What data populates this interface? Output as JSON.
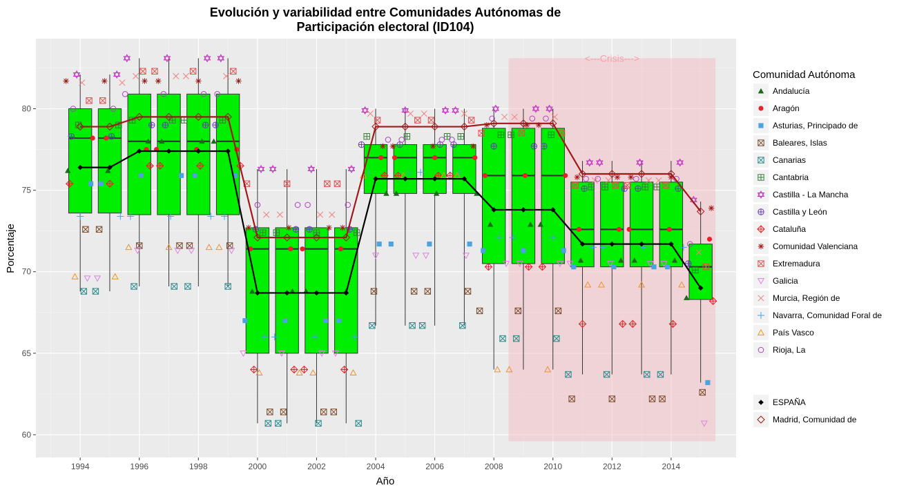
{
  "chart_data": {
    "type": "boxplot",
    "title_line1": "Evolución y variabilidad entre Comunidades Autónomas de",
    "title_line2": "Participación electoral (ID104)",
    "xlabel": "Año",
    "ylabel": "Porcentaje",
    "xlim": [
      1992.5,
      2016.2
    ],
    "ylim": [
      58.6,
      84.3
    ],
    "x_ticks": [
      1994,
      1996,
      1998,
      2000,
      2002,
      2004,
      2006,
      2008,
      2010,
      2012,
      2014
    ],
    "y_ticks": [
      60,
      65,
      70,
      75,
      80
    ],
    "grid": true,
    "crisis": {
      "label": "<---Crisis--->",
      "x_start": 2008.5,
      "x_end": 2015.5,
      "y_min": 59.6,
      "y_max": 83.1
    },
    "legend": {
      "title": "Comunidad Autónoma",
      "position": "right",
      "entries": [
        {
          "label": "Andalucía",
          "shape": "triangle-filled",
          "color": "#1a6b1a"
        },
        {
          "label": "Aragón",
          "shape": "circle-filled",
          "color": "#e8212a"
        },
        {
          "label": "Asturias, Principado de",
          "shape": "square-filled",
          "color": "#4ba3e0"
        },
        {
          "label": "Baleares, Islas",
          "shape": "square-x",
          "color": "#7a4a2a"
        },
        {
          "label": "Canarias",
          "shape": "square-x",
          "color": "#2a8a8a"
        },
        {
          "label": "Cantabria",
          "shape": "square-plus",
          "color": "#3a7a3a"
        },
        {
          "label": "Castilla - La Mancha",
          "shape": "star-david",
          "color": "#c030c0"
        },
        {
          "label": "Castilla y León",
          "shape": "circle-plus",
          "color": "#6a3ac0"
        },
        {
          "label": "Cataluña",
          "shape": "diamond-plus",
          "color": "#e8212a"
        },
        {
          "label": "Comunidad Valenciana",
          "shape": "asterisk",
          "color": "#a01818"
        },
        {
          "label": "Extremadura",
          "shape": "square-x",
          "color": "#e05050"
        },
        {
          "label": "Galicia",
          "shape": "triangle-down",
          "color": "#e080e0"
        },
        {
          "label": "Murcia, Región de",
          "shape": "x",
          "color": "#f08080"
        },
        {
          "label": "Navarra, Comunidad Foral de",
          "shape": "plus",
          "color": "#4ba3e0"
        },
        {
          "label": "País Vasco",
          "shape": "triangle-open",
          "color": "#f0902a"
        },
        {
          "label": "Rioja, La",
          "shape": "circle-open",
          "color": "#b040c0"
        }
      ],
      "entries2": [
        {
          "label": "ESPAÑA",
          "shape": "diamond-filled",
          "color": "#000000"
        },
        {
          "label": "Madrid, Comunidad de",
          "shape": "diamond-open",
          "color": "#a01818"
        }
      ]
    },
    "boxes": [
      {
        "x": 1994,
        "q1": 73.6,
        "median": 78.2,
        "q3": 80.0,
        "whisker_low": 68.8,
        "whisker_high": 82.1
      },
      {
        "x": 1995,
        "q1": 73.6,
        "median": 78.2,
        "q3": 80.0,
        "whisker_low": 68.8,
        "whisker_high": 82.1
      },
      {
        "x": 1996,
        "q1": 73.5,
        "median": 78.0,
        "q3": 80.9,
        "whisker_low": 69.1,
        "whisker_high": 83.1
      },
      {
        "x": 1997,
        "q1": 73.5,
        "median": 78.0,
        "q3": 80.9,
        "whisker_low": 69.1,
        "whisker_high": 83.1
      },
      {
        "x": 1998,
        "q1": 73.5,
        "median": 78.0,
        "q3": 80.9,
        "whisker_low": 69.1,
        "whisker_high": 83.1
      },
      {
        "x": 1999,
        "q1": 73.5,
        "median": 78.0,
        "q3": 80.9,
        "whisker_low": 69.1,
        "whisker_high": 83.1
      },
      {
        "x": 2000,
        "q1": 65.0,
        "median": 71.4,
        "q3": 72.7,
        "whisker_low": 60.7,
        "whisker_high": 76.3
      },
      {
        "x": 2001,
        "q1": 65.0,
        "median": 71.4,
        "q3": 72.7,
        "whisker_low": 60.7,
        "whisker_high": 76.3
      },
      {
        "x": 2002,
        "q1": 65.0,
        "median": 71.4,
        "q3": 72.7,
        "whisker_low": 60.7,
        "whisker_high": 76.3
      },
      {
        "x": 2003,
        "q1": 65.0,
        "median": 71.4,
        "q3": 72.7,
        "whisker_low": 60.7,
        "whisker_high": 76.3
      },
      {
        "x": 2004,
        "q1": 74.8,
        "median": 77.0,
        "q3": 77.8,
        "whisker_low": 66.7,
        "whisker_high": 80.0
      },
      {
        "x": 2005,
        "q1": 74.8,
        "median": 77.0,
        "q3": 77.8,
        "whisker_low": 66.7,
        "whisker_high": 80.0
      },
      {
        "x": 2006,
        "q1": 74.8,
        "median": 77.0,
        "q3": 77.8,
        "whisker_low": 66.7,
        "whisker_high": 80.0
      },
      {
        "x": 2007,
        "q1": 74.8,
        "median": 77.0,
        "q3": 77.8,
        "whisker_low": 66.7,
        "whisker_high": 80.0
      },
      {
        "x": 2008,
        "q1": 70.5,
        "median": 75.9,
        "q3": 78.8,
        "whisker_low": 64.0,
        "whisker_high": 80.0
      },
      {
        "x": 2009,
        "q1": 70.5,
        "median": 75.9,
        "q3": 78.8,
        "whisker_low": 64.0,
        "whisker_high": 80.0
      },
      {
        "x": 2010,
        "q1": 70.5,
        "median": 75.9,
        "q3": 78.8,
        "whisker_low": 64.0,
        "whisker_high": 80.0
      },
      {
        "x": 2011,
        "q1": 70.3,
        "median": 72.6,
        "q3": 75.5,
        "whisker_low": 63.7,
        "whisker_high": 76.8
      },
      {
        "x": 2012,
        "q1": 70.3,
        "median": 72.6,
        "q3": 75.5,
        "whisker_low": 63.7,
        "whisker_high": 76.8
      },
      {
        "x": 2013,
        "q1": 70.3,
        "median": 72.6,
        "q3": 75.5,
        "whisker_low": 63.7,
        "whisker_high": 76.8
      },
      {
        "x": 2014,
        "q1": 70.3,
        "median": 72.6,
        "q3": 75.5,
        "whisker_low": 63.7,
        "whisker_high": 76.8
      },
      {
        "x": 2015,
        "q1": 68.3,
        "median": 70.3,
        "q3": 71.7,
        "whisker_low": 63.2,
        "whisker_high": 74.3
      }
    ],
    "series": [
      {
        "name": "ESPAÑA",
        "x": [
          1994,
          1995,
          1996,
          1997,
          1998,
          1999,
          2000,
          2001,
          2002,
          2003,
          2004,
          2005,
          2006,
          2007,
          2008,
          2009,
          2010,
          2011,
          2012,
          2013,
          2014,
          2015
        ],
        "values": [
          76.4,
          76.4,
          77.4,
          77.4,
          77.4,
          77.4,
          68.7,
          68.7,
          68.7,
          68.7,
          75.7,
          75.7,
          75.7,
          75.7,
          73.8,
          73.8,
          73.8,
          71.7,
          71.7,
          71.7,
          71.7,
          69.0
        ]
      },
      {
        "name": "Madrid, Comunidad de",
        "x": [
          1994,
          1995,
          1996,
          1997,
          1998,
          1999,
          2000,
          2001,
          2002,
          2003,
          2004,
          2005,
          2006,
          2007,
          2008,
          2009,
          2010,
          2011,
          2012,
          2013,
          2014,
          2015
        ],
        "values": [
          78.9,
          78.9,
          79.5,
          79.5,
          79.5,
          79.5,
          72.1,
          72.1,
          72.1,
          72.1,
          78.9,
          78.9,
          78.9,
          78.9,
          79.1,
          79.1,
          79.1,
          76.0,
          76.0,
          76.0,
          76.0,
          73.7
        ]
      }
    ],
    "points": [
      {
        "name": "Andalucía",
        "values": [
          76.2,
          76.2,
          78.0,
          78.0,
          78.0,
          78.0,
          68.8,
          68.8,
          68.8,
          68.8,
          74.8,
          74.8,
          74.8,
          74.8,
          72.9,
          72.9,
          72.9,
          70.7,
          70.7,
          70.7,
          70.7,
          68.4
        ]
      },
      {
        "name": "Aragón",
        "values": [
          78.2,
          78.2,
          77.5,
          77.5,
          77.5,
          77.5,
          71.4,
          71.4,
          71.4,
          71.4,
          77.0,
          77.0,
          77.0,
          77.0,
          75.9,
          75.9,
          75.9,
          72.6,
          72.6,
          72.6,
          72.6,
          72.0
        ]
      },
      {
        "name": "Asturias, Principado de",
        "values": [
          75.4,
          75.4,
          75.9,
          75.9,
          75.9,
          75.9,
          67.0,
          67.0,
          67.0,
          67.0,
          71.7,
          71.7,
          71.7,
          71.7,
          71.3,
          71.3,
          71.3,
          70.3,
          70.3,
          70.3,
          70.3,
          63.2
        ]
      },
      {
        "name": "Baleares, Islas",
        "values": [
          72.6,
          72.6,
          71.6,
          71.6,
          71.6,
          71.6,
          61.4,
          61.4,
          61.4,
          61.4,
          68.8,
          68.8,
          68.8,
          68.8,
          67.6,
          67.6,
          67.6,
          62.2,
          62.2,
          62.2,
          62.2,
          62.6
        ]
      },
      {
        "name": "Canarias",
        "values": [
          68.8,
          68.8,
          69.1,
          69.1,
          69.1,
          69.1,
          60.7,
          60.7,
          60.7,
          60.7,
          66.7,
          66.7,
          66.7,
          66.7,
          65.9,
          65.9,
          65.9,
          63.7,
          63.7,
          63.7,
          63.7,
          null
        ]
      },
      {
        "name": "Cantabria",
        "values": [
          79.0,
          79.0,
          79.3,
          79.3,
          79.3,
          79.3,
          72.4,
          72.4,
          72.4,
          72.4,
          78.3,
          78.3,
          78.3,
          78.3,
          78.4,
          78.4,
          78.4,
          75.2,
          75.2,
          75.2,
          75.2,
          70.1
        ]
      },
      {
        "name": "Castilla - La Mancha",
        "values": [
          82.1,
          82.1,
          83.1,
          83.1,
          83.1,
          83.1,
          76.3,
          76.3,
          76.3,
          76.3,
          79.9,
          79.9,
          79.9,
          79.9,
          80.0,
          80.0,
          80.0,
          76.7,
          76.7,
          76.7,
          76.7,
          74.4
        ]
      },
      {
        "name": "Castilla y León",
        "values": [
          78.3,
          78.3,
          79.0,
          79.0,
          79.0,
          79.0,
          72.6,
          72.6,
          72.6,
          72.6,
          77.8,
          77.8,
          77.8,
          77.8,
          77.7,
          77.7,
          77.7,
          75.1,
          75.1,
          75.1,
          75.1,
          70.5
        ]
      },
      {
        "name": "Cataluña",
        "values": [
          75.4,
          75.4,
          76.5,
          76.5,
          76.5,
          76.5,
          64.0,
          64.0,
          64.0,
          64.0,
          75.9,
          75.9,
          75.9,
          75.9,
          70.3,
          70.3,
          70.3,
          66.8,
          66.8,
          66.8,
          66.8,
          68.2
        ]
      },
      {
        "name": "Comunidad Valenciana",
        "values": [
          81.7,
          81.7,
          81.7,
          81.7,
          81.7,
          81.7,
          72.7,
          72.7,
          72.7,
          72.7,
          77.7,
          77.7,
          77.7,
          77.7,
          79.0,
          79.0,
          79.0,
          75.8,
          75.8,
          75.8,
          75.8,
          73.9
        ]
      },
      {
        "name": "Extremadura",
        "values": [
          80.5,
          80.5,
          82.3,
          82.3,
          82.3,
          82.3,
          75.4,
          75.4,
          75.4,
          75.4,
          79.3,
          79.3,
          79.3,
          79.3,
          78.5,
          78.5,
          78.5,
          75.3,
          75.3,
          75.3,
          75.3,
          70.3
        ]
      },
      {
        "name": "Galicia",
        "values": [
          69.6,
          69.6,
          71.3,
          71.3,
          71.3,
          71.3,
          65.0,
          65.0,
          65.0,
          65.0,
          71.0,
          71.0,
          71.0,
          71.0,
          70.5,
          70.5,
          70.5,
          70.5,
          70.5,
          70.5,
          70.5,
          60.7
        ]
      },
      {
        "name": "Murcia, Región de",
        "values": [
          81.6,
          81.6,
          82.0,
          82.0,
          82.0,
          82.0,
          73.5,
          73.5,
          73.5,
          73.5,
          79.7,
          79.7,
          79.7,
          79.7,
          79.5,
          79.5,
          79.5,
          75.6,
          75.6,
          75.6,
          75.6,
          71.2
        ]
      },
      {
        "name": "Navarra, Comunidad Foral de",
        "values": [
          73.4,
          73.4,
          73.4,
          73.4,
          73.4,
          73.4,
          66.0,
          66.0,
          66.0,
          66.0,
          76.1,
          76.1,
          76.1,
          76.1,
          72.1,
          72.1,
          72.1,
          71.5,
          71.5,
          71.5,
          71.5,
          null
        ]
      },
      {
        "name": "País Vasco",
        "values": [
          69.7,
          69.7,
          71.5,
          71.5,
          71.5,
          71.5,
          63.8,
          63.8,
          63.8,
          63.8,
          75.9,
          75.9,
          75.9,
          75.9,
          64.0,
          64.0,
          64.0,
          69.2,
          69.2,
          69.2,
          69.2,
          null
        ]
      },
      {
        "name": "Rioja, La",
        "values": [
          80.0,
          80.0,
          80.9,
          80.9,
          80.9,
          80.9,
          74.1,
          74.1,
          74.1,
          74.1,
          78.1,
          78.1,
          78.1,
          78.1,
          79.4,
          79.4,
          79.4,
          75.7,
          75.7,
          75.7,
          75.7,
          71.7
        ]
      }
    ]
  }
}
